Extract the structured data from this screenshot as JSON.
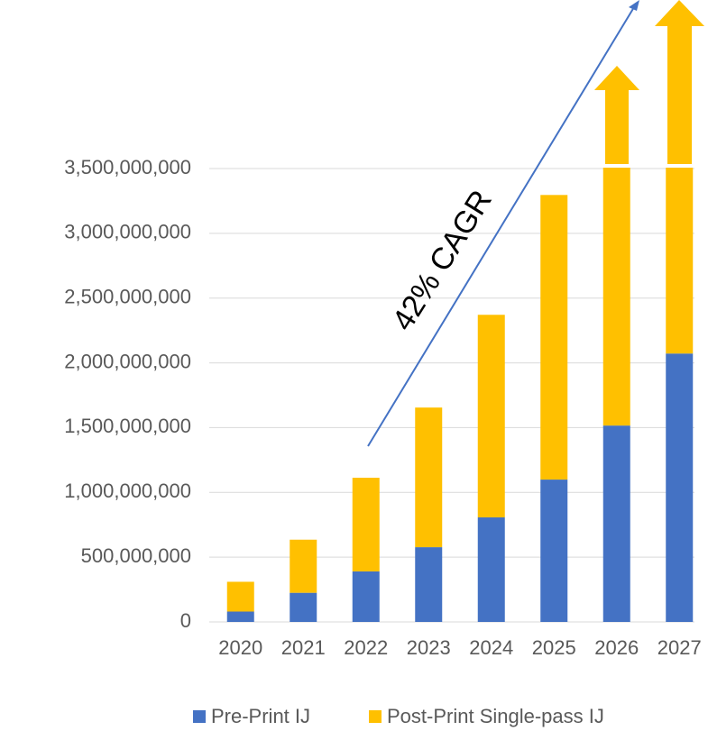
{
  "chart_data": {
    "type": "bar",
    "stacked": true,
    "categories": [
      "2020",
      "2021",
      "2022",
      "2023",
      "2024",
      "2025",
      "2026",
      "2027"
    ],
    "series": [
      {
        "name": "Pre-Print IJ",
        "color": "#4472c4",
        "values": [
          80000000,
          225000000,
          390000000,
          577000000,
          807000000,
          1099000000,
          1516000000,
          2072000000
        ]
      },
      {
        "name": "Post-Print Single-pass IJ",
        "color": "#ffc000",
        "values": [
          230000000,
          410000000,
          723000000,
          1078000000,
          1564000000,
          2197000000,
          2010000000,
          1455000000
        ]
      }
    ],
    "ylim": [
      0,
      3500000000
    ],
    "yticks": [
      0,
      {
        "value": 500000000,
        "label": "500,000,000"
      },
      {
        "value": 1000000000,
        "label": "1,000,000,000"
      },
      {
        "value": 1500000000,
        "label": "1,500,000,000"
      },
      {
        "value": 2000000000,
        "label": "2,000,000,000"
      },
      {
        "value": 2500000000,
        "label": "2,500,000,000"
      },
      {
        "value": 3000000000,
        "label": "3,000,000,000"
      },
      {
        "value": 3500000000,
        "label": "3,500,000,000"
      }
    ],
    "grid": true,
    "annotation": "42% CAGR",
    "legend": "bottom"
  }
}
